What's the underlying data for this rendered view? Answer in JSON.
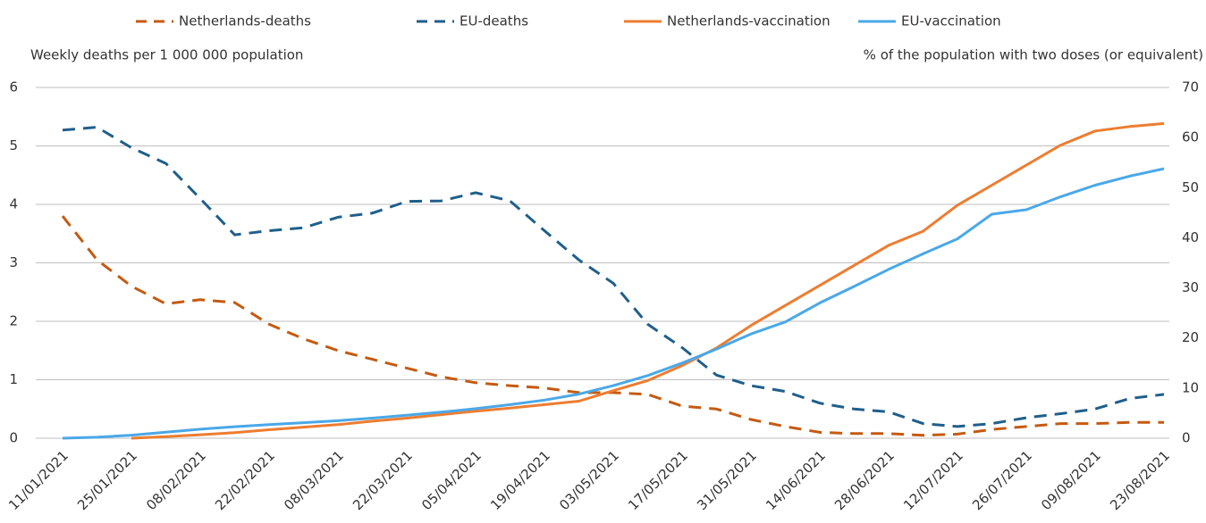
{
  "chart_data": {
    "type": "line",
    "y_label": "Weekly deaths per 1 000 000 population",
    "y2_label": "% of the population with two doses (or equivalent)",
    "categories": [
      "11/01/2021",
      null,
      "25/01/2021",
      null,
      "08/02/2021",
      null,
      "22/02/2021",
      null,
      "08/03/2021",
      null,
      "22/03/2021",
      null,
      "05/04/2021",
      null,
      "19/04/2021",
      null,
      "03/05/2021",
      null,
      "17/05/2021",
      null,
      "31/05/2021",
      null,
      "14/06/2021",
      null,
      "28/06/2021",
      null,
      "12/07/2021",
      null,
      "26/07/2021",
      null,
      "09/08/2021",
      null,
      "23/08/2021"
    ],
    "series": [
      {
        "name": "Netherlands-deaths",
        "color": "#c55a11",
        "dashed": true,
        "axis": "y",
        "values": [
          3.8,
          3.05,
          2.6,
          2.3,
          2.37,
          2.32,
          1.95,
          1.7,
          1.5,
          1.35,
          1.2,
          1.05,
          0.95,
          0.9,
          0.86,
          0.78,
          0.78,
          0.75,
          0.55,
          0.5,
          0.32,
          0.2,
          0.1,
          0.08,
          0.08,
          0.05,
          0.07,
          0.15,
          0.2,
          0.25,
          0.25,
          0.27,
          0.27
        ]
      },
      {
        "name": "EU-deaths",
        "color": "#1f5f8b",
        "dashed": true,
        "axis": "y",
        "values": [
          5.27,
          5.32,
          4.97,
          4.7,
          4.1,
          3.48,
          3.55,
          3.6,
          3.78,
          3.85,
          4.05,
          4.06,
          4.2,
          4.06,
          3.55,
          3.05,
          2.65,
          1.95,
          1.55,
          1.08,
          0.9,
          0.8,
          0.6,
          0.5,
          0.45,
          0.25,
          0.2,
          0.25,
          0.35,
          0.42,
          0.5,
          0.68,
          0.75
        ]
      },
      {
        "name": "Netherlands-vaccination",
        "color": "#ed7d31",
        "dashed": false,
        "axis": "y2",
        "values": [
          null,
          null,
          0,
          0.3,
          0.7,
          1.1,
          1.7,
          2.2,
          2.7,
          3.4,
          4.0,
          4.7,
          5.4,
          6.0,
          6.7,
          7.4,
          9.5,
          11.5,
          14.5,
          18,
          22.5,
          26.5,
          30.5,
          34.5,
          38.5,
          41.3,
          46.5,
          50.5,
          54.5,
          58.5,
          61.3,
          62.2,
          62.8
        ]
      },
      {
        "name": "EU-vaccination",
        "color": "#4aa8e8",
        "dashed": false,
        "axis": "y2",
        "values": [
          0,
          0.2,
          0.6,
          1.2,
          1.8,
          2.3,
          2.7,
          3.1,
          3.5,
          4.0,
          4.6,
          5.2,
          5.9,
          6.7,
          7.6,
          8.8,
          10.5,
          12.5,
          15,
          17.8,
          20.8,
          23.2,
          27,
          30.3,
          33.7,
          36.8,
          39.8,
          44.7,
          45.6,
          48.2,
          50.5,
          52.3,
          53.8
        ]
      }
    ],
    "ylim": [
      0,
      6
    ],
    "yticks": [
      0,
      1,
      2,
      3,
      4,
      5,
      6
    ],
    "y2lim": [
      0,
      70
    ],
    "y2ticks": [
      0,
      10,
      20,
      30,
      40,
      50,
      60,
      70
    ],
    "grid": true,
    "legend": "top"
  }
}
